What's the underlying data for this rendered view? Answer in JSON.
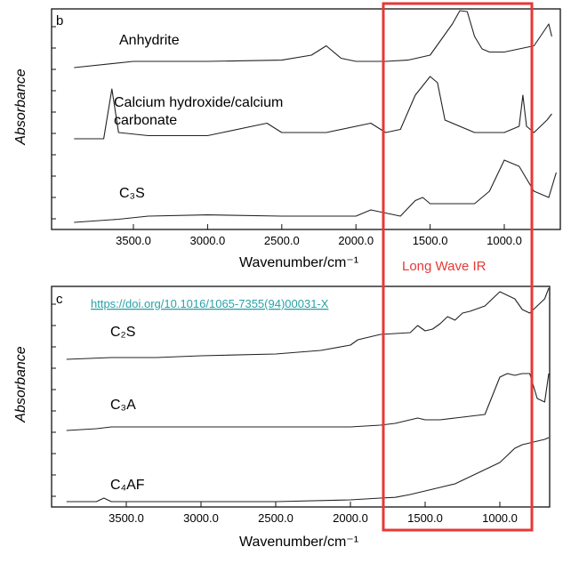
{
  "chart_data": [
    {
      "type": "line",
      "panel": "b",
      "ylabel": "Absorbance",
      "xlabel": "Wavenumber/cm⁻¹",
      "xlim": [
        4000,
        650
      ],
      "x_reversed": true,
      "xticks": [
        3500.0,
        3000.0,
        2500.0,
        2000.0,
        1500.0,
        1000.0
      ],
      "xtick_labels": [
        "3500.0",
        "3000.0",
        "2500.0",
        "2000.0",
        "1500.0",
        "1000.0"
      ],
      "series": [
        {
          "name": "Anhydrite",
          "x": [
            3900,
            3500,
            3000,
            2500,
            2300,
            2200,
            2100,
            2000,
            1800,
            1650,
            1500,
            1350,
            1300,
            1250,
            1200,
            1150,
            1100,
            1000,
            900,
            800,
            700,
            680
          ],
          "y": [
            0.2,
            0.3,
            0.3,
            0.32,
            0.4,
            0.55,
            0.35,
            0.3,
            0.3,
            0.32,
            0.4,
            0.9,
            1.2,
            1.1,
            0.7,
            0.5,
            0.45,
            0.45,
            0.5,
            0.55,
            0.9,
            0.7
          ]
        },
        {
          "name": "Calcium hydroxide/calcium carbonate",
          "x": [
            3900,
            3800,
            3700,
            3645,
            3600,
            3400,
            3000,
            2900,
            2600,
            2500,
            2200,
            1900,
            1800,
            1700,
            1600,
            1500,
            1450,
            1400,
            1200,
            1000,
            900,
            875,
            850,
            800,
            712,
            680
          ],
          "y": [
            0.2,
            0.2,
            0.2,
            1.0,
            0.3,
            0.25,
            0.25,
            0.3,
            0.45,
            0.3,
            0.3,
            0.45,
            0.3,
            0.35,
            0.9,
            1.2,
            1.1,
            0.5,
            0.3,
            0.3,
            0.4,
            0.9,
            0.4,
            0.3,
            0.5,
            0.6
          ]
        },
        {
          "name": "C₃S",
          "x": [
            3900,
            3600,
            3400,
            3000,
            2500,
            2000,
            1900,
            1800,
            1700,
            1600,
            1550,
            1500,
            1400,
            1200,
            1100,
            1000,
            950,
            900,
            850,
            800,
            700,
            650
          ],
          "y": [
            0.0,
            0.05,
            0.1,
            0.12,
            0.1,
            0.1,
            0.2,
            0.15,
            0.1,
            0.35,
            0.4,
            0.3,
            0.3,
            0.3,
            0.5,
            1.0,
            0.95,
            0.9,
            0.7,
            0.5,
            0.4,
            0.8
          ]
        }
      ]
    },
    {
      "type": "line",
      "panel": "c",
      "ylabel": "Absorbance",
      "xlabel": "Wavenumber/cm⁻¹",
      "xlim": [
        4000,
        650
      ],
      "x_reversed": true,
      "xticks": [
        3500.0,
        3000.0,
        2500.0,
        2000.0,
        1500.0,
        1000.0
      ],
      "xtick_labels": [
        "3500.0",
        "3000.0",
        "2500.0",
        "2000.0",
        "1500.0",
        "1000.0"
      ],
      "series": [
        {
          "name": "C₂S",
          "x": [
            3900,
            3600,
            3300,
            3000,
            2500,
            2200,
            2000,
            1950,
            1900,
            1800,
            1600,
            1550,
            1500,
            1450,
            1400,
            1350,
            1300,
            1250,
            1200,
            1100,
            1000,
            950,
            900,
            850,
            800,
            750,
            700,
            650
          ],
          "y": [
            0.0,
            0.05,
            0.05,
            0.1,
            0.15,
            0.25,
            0.4,
            0.55,
            0.6,
            0.7,
            0.75,
            0.95,
            0.8,
            0.85,
            1.0,
            1.2,
            1.1,
            1.3,
            1.35,
            1.5,
            1.9,
            1.8,
            1.7,
            1.4,
            1.3,
            1.5,
            1.7,
            2.1
          ]
        },
        {
          "name": "C₃A",
          "x": [
            3900,
            3700,
            3600,
            3400,
            3000,
            2500,
            2000,
            1800,
            1700,
            1600,
            1550,
            1500,
            1400,
            1300,
            1200,
            1100,
            1000,
            950,
            900,
            850,
            800,
            750,
            700,
            650
          ],
          "y": [
            0.0,
            0.05,
            0.1,
            0.1,
            0.1,
            0.1,
            0.1,
            0.15,
            0.2,
            0.3,
            0.35,
            0.3,
            0.3,
            0.35,
            0.4,
            0.45,
            1.5,
            1.6,
            1.55,
            1.6,
            1.6,
            0.9,
            0.8,
            1.6
          ]
        },
        {
          "name": "C₄AF",
          "x": [
            3900,
            3700,
            3650,
            3600,
            3400,
            3000,
            2500,
            2000,
            1800,
            1700,
            1600,
            1500,
            1400,
            1300,
            1200,
            1100,
            1000,
            950,
            900,
            850,
            800,
            750,
            700,
            650
          ],
          "y": [
            0.0,
            0.0,
            0.1,
            0.0,
            0.0,
            0.0,
            0.0,
            0.05,
            0.1,
            0.12,
            0.2,
            0.3,
            0.4,
            0.5,
            0.7,
            0.9,
            1.1,
            1.3,
            1.5,
            1.6,
            1.65,
            1.7,
            1.75,
            1.8
          ]
        }
      ]
    }
  ],
  "annotation": {
    "label": "Long Wave IR",
    "color": "#e53935",
    "x_range": [
      1700,
      650
    ]
  },
  "doi_link": {
    "text": "https://doi.org/10.1016/1065-7355(94)00031-X",
    "color": "#2aa2a6"
  },
  "colors": {
    "curve": "#222222",
    "frame": "#111111"
  }
}
